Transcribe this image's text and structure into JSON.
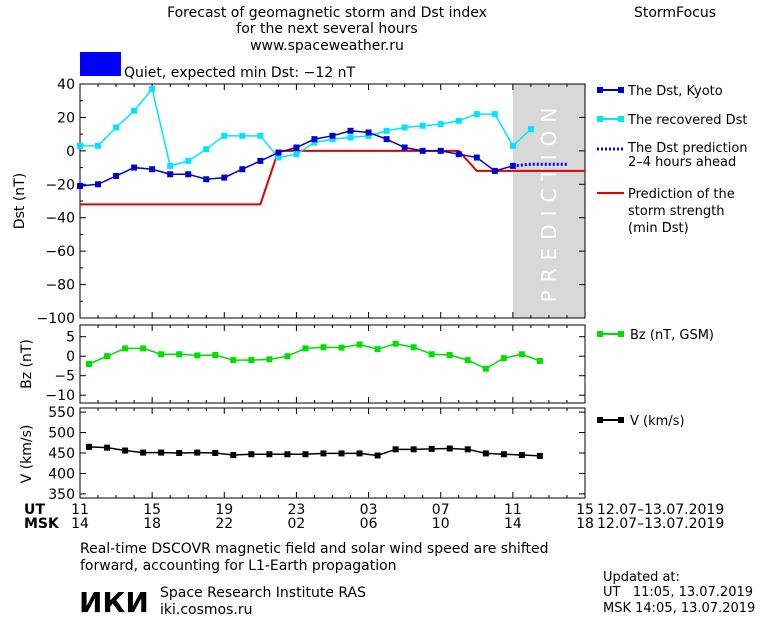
{
  "header": {
    "title_line1": "Forecast of geomagnetic storm and Dst index",
    "title_line2": "for the next several hours",
    "site": "www.spaceweather.ru",
    "brand": "StormFocus",
    "status_text": "Quiet, expected min Dst: −12 nT",
    "status_color": "#0000ff"
  },
  "legend": {
    "dst_kyoto": "The Dst, Kyoto",
    "dst_recovered": "The recovered Dst",
    "dst_pred_1": "The Dst prediction",
    "dst_pred_2": "2–4 hours ahead",
    "storm_1": "Prediction of the",
    "storm_2": "storm strength",
    "storm_3": "(min Dst)",
    "bz": "Bz (nT, GSM)",
    "v": "V (km/s)"
  },
  "prediction_label": "PREDICTION",
  "axis_bottom": {
    "ut_label": "UT",
    "msk_label": "MSK",
    "ut_ticks": [
      "11",
      "15",
      "19",
      "23",
      "03",
      "07",
      "11",
      "15"
    ],
    "msk_ticks": [
      "14",
      "18",
      "22",
      "02",
      "06",
      "10",
      "14",
      "18"
    ],
    "date_range": "12.07–13.07.2019"
  },
  "footer": {
    "note_1": "Real-time DSCOVR magnetic field and solar wind speed are shifted",
    "note_2": "forward, accounting for L1-Earth propagation",
    "logo_text": "ИКИ",
    "institute": "Space Research Institute RAS",
    "site": "iki.cosmos.ru",
    "updated_label": "Updated at:",
    "updated_ut": "UT   11:05, 13.07.2019",
    "updated_msk": "MSK 14:05, 13.07.2019"
  },
  "colors": {
    "dst_kyoto": "#0000cc",
    "dst_recovered": "#00e5ff",
    "dst_pred": "#0000ff",
    "storm": "#e00000",
    "bz": "#00e000",
    "v": "#000000",
    "prediction_band": "#d8d8d8"
  },
  "chart_data": [
    {
      "type": "line",
      "ylabel": "Dst (nT)",
      "ylim": [
        -100,
        40
      ],
      "yticks": [
        40,
        20,
        0,
        -20,
        -40,
        -60,
        -80,
        -100
      ],
      "xlim": [
        11,
        39
      ],
      "x_unit": "UT hours from 12.07.2019 00:00",
      "prediction_band_start": 35,
      "series": [
        {
          "name": "The Dst, Kyoto",
          "x": [
            11,
            12,
            13,
            14,
            15,
            16,
            17,
            18,
            19,
            20,
            21,
            22,
            23,
            24,
            25,
            26,
            27,
            28,
            29,
            30,
            31,
            32,
            33,
            34,
            35
          ],
          "y": [
            -21,
            -20,
            -15,
            -10,
            -11,
            -14,
            -14,
            -17,
            -16,
            -11,
            -6,
            -1,
            2,
            7,
            9,
            12,
            11,
            7,
            2,
            0,
            0,
            -2,
            -4,
            -12,
            -9
          ]
        },
        {
          "name": "The recovered Dst",
          "x": [
            11,
            12,
            13,
            14,
            15,
            16,
            17,
            18,
            19,
            20,
            21,
            22,
            23,
            24,
            25,
            26,
            27,
            28,
            29,
            30,
            31,
            32,
            33,
            34,
            35,
            36
          ],
          "y": [
            3,
            3,
            14,
            24,
            37,
            -9,
            -6,
            1,
            9,
            9,
            9,
            -4,
            -2,
            5,
            7,
            8,
            9,
            12,
            14,
            15,
            16,
            18,
            22,
            22,
            3,
            13
          ]
        },
        {
          "name": "The Dst prediction",
          "x": [
            35,
            36,
            37,
            38
          ],
          "y": [
            -9,
            -8,
            -8,
            -8
          ]
        },
        {
          "name": "Prediction of the storm strength",
          "x": [
            11,
            21,
            22,
            32,
            33,
            39
          ],
          "y": [
            -32,
            -32,
            0,
            0,
            -12,
            -12
          ]
        }
      ]
    },
    {
      "type": "line",
      "ylabel": "Bz (nT)",
      "ylim": [
        -12,
        8
      ],
      "yticks": [
        5,
        0,
        -5,
        -10
      ],
      "xlim": [
        11,
        39
      ],
      "series": [
        {
          "name": "Bz (nT, GSM)",
          "x": [
            11.5,
            12.5,
            13.5,
            14.5,
            15.5,
            16.5,
            17.5,
            18.5,
            19.5,
            20.5,
            21.5,
            22.5,
            23.5,
            24.5,
            25.5,
            26.5,
            27.5,
            28.5,
            29.5,
            30.5,
            31.5,
            32.5,
            33.5,
            34.5,
            35.5,
            36.5
          ],
          "y": [
            -2,
            0,
            2,
            2,
            0.5,
            0.5,
            0.2,
            0.3,
            -1,
            -1,
            -0.8,
            0,
            2,
            2.3,
            2.2,
            3,
            1.8,
            3.2,
            2.3,
            0.5,
            0.3,
            -1,
            -3.2,
            -0.5,
            0.5,
            -1.2
          ]
        }
      ]
    },
    {
      "type": "line",
      "ylabel": "V (km/s)",
      "ylim": [
        340,
        560
      ],
      "yticks": [
        550,
        500,
        450,
        400,
        350
      ],
      "xlim": [
        11,
        39
      ],
      "series": [
        {
          "name": "V (km/s)",
          "x": [
            11.5,
            12.5,
            13.5,
            14.5,
            15.5,
            16.5,
            17.5,
            18.5,
            19.5,
            20.5,
            21.5,
            22.5,
            23.5,
            24.5,
            25.5,
            26.5,
            27.5,
            28.5,
            29.5,
            30.5,
            31.5,
            32.5,
            33.5,
            34.5,
            35.5,
            36.5
          ],
          "y": [
            465,
            463,
            456,
            451,
            451,
            450,
            451,
            450,
            445,
            447,
            447,
            447,
            447,
            449,
            449,
            449,
            444,
            459,
            459,
            460,
            461,
            459,
            449,
            447,
            445,
            443
          ]
        }
      ]
    }
  ]
}
